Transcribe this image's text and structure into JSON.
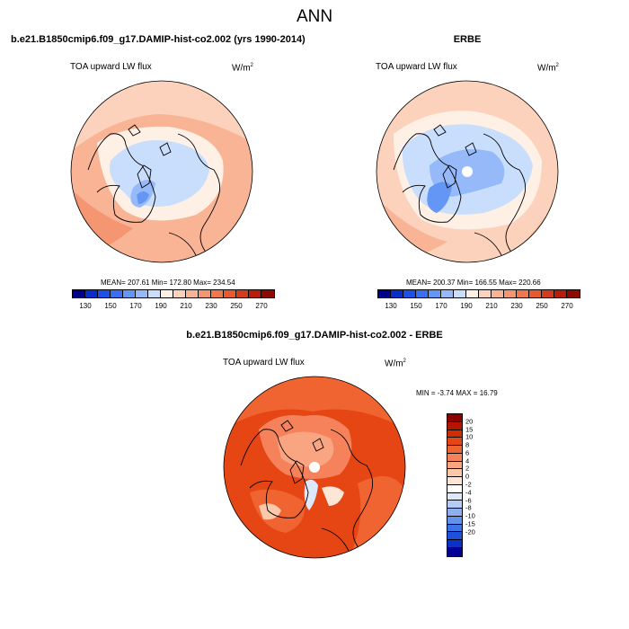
{
  "main_title": "ANN",
  "panels": {
    "left": {
      "title": "b.e21.B1850cmip6.f09_g17.DAMIP-hist-co2.002 (yrs 1990-2014)",
      "variable": "TOA upward LW flux",
      "units": "W/m",
      "units_exp": "2",
      "stats": "MEAN= 207.61  Min= 172.80  Max= 234.54"
    },
    "right": {
      "title": "ERBE",
      "variable": "TOA upward LW flux",
      "units": "W/m",
      "units_exp": "2",
      "stats": "MEAN= 200.37  Min= 166.55  Max= 220.66"
    },
    "diff": {
      "title": "b.e21.B1850cmip6.f09_g17.DAMIP-hist-co2.002 - ERBE",
      "variable": "TOA upward LW flux",
      "units": "W/m",
      "units_exp": "2",
      "stats": "MIN =  -3.74 MAX =  16.79"
    }
  },
  "colorbar_abs": {
    "colors": [
      "#00008b",
      "#0a2ec8",
      "#1e50e6",
      "#3c6ef0",
      "#6496f5",
      "#96b9fa",
      "#c8defc",
      "#fff0e6",
      "#fcd2bc",
      "#f9b496",
      "#f59673",
      "#f07850",
      "#e65a32",
      "#d23c1e",
      "#b41e0a",
      "#8c0a00"
    ],
    "ticks": [
      "130",
      "150",
      "170",
      "190",
      "210",
      "230",
      "250",
      "270"
    ]
  },
  "colorbar_diff": {
    "colors": [
      "#8c0000",
      "#b41400",
      "#d22d00",
      "#e64614",
      "#f06432",
      "#f5825a",
      "#f9a582",
      "#fcc8aa",
      "#fde6d6",
      "#ffffff",
      "#dde9fb",
      "#b4cdf5",
      "#8caff0",
      "#6491eb",
      "#3c73e6",
      "#1e50dc",
      "#0a30c8",
      "#000096"
    ],
    "ticks": [
      "20",
      "15",
      "10",
      "8",
      "6",
      "4",
      "2",
      "0",
      "-2",
      "-4",
      "-6",
      "-8",
      "-10",
      "-15",
      "-20"
    ]
  },
  "chart_data": [
    {
      "type": "heatmap",
      "title": "b.e21.B1850cmip6.f09_g17.DAMIP-hist-co2.002 (yrs 1990-2014)",
      "variable": "TOA upward LW flux",
      "units": "W/m2",
      "projection": "north polar stereographic",
      "mean": 207.61,
      "min": 172.8,
      "max": 234.54,
      "colorbar_levels": [
        130,
        150,
        170,
        190,
        210,
        230,
        250,
        270
      ]
    },
    {
      "type": "heatmap",
      "title": "ERBE",
      "variable": "TOA upward LW flux",
      "units": "W/m2",
      "projection": "north polar stereographic",
      "mean": 200.37,
      "min": 166.55,
      "max": 220.66,
      "colorbar_levels": [
        130,
        150,
        170,
        190,
        210,
        230,
        250,
        270
      ]
    },
    {
      "type": "heatmap",
      "title": "b.e21.B1850cmip6.f09_g17.DAMIP-hist-co2.002 - ERBE",
      "variable": "TOA upward LW flux",
      "units": "W/m2",
      "projection": "north polar stereographic",
      "min": -3.74,
      "max": 16.79,
      "colorbar_levels": [
        -20,
        -15,
        -10,
        -8,
        -6,
        -4,
        -2,
        0,
        2,
        4,
        6,
        8,
        10,
        15,
        20
      ]
    }
  ]
}
